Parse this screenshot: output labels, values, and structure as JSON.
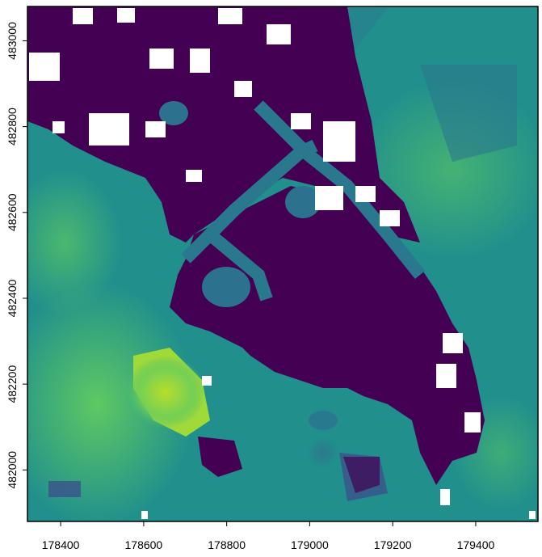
{
  "map": {
    "extent": {
      "xmin": 178320,
      "xmax": 179550,
      "ymin": 481880,
      "ymax": 483080
    },
    "x_ticks": [
      "178400",
      "178600",
      "178800",
      "179000",
      "179200",
      "179400"
    ],
    "y_ticks": [
      "482000",
      "482200",
      "482400",
      "482600",
      "482800",
      "483000"
    ],
    "x_tick_values": [
      178400,
      178600,
      178800,
      179000,
      179200,
      179400
    ],
    "y_tick_values": [
      482000,
      482200,
      482400,
      482600,
      482800,
      483000
    ],
    "palette": {
      "dark": "#440154",
      "purple_blue": "#3b528b",
      "teal": "#21908c",
      "green": "#35b779",
      "yellow_green": "#90d743",
      "nodata": "#ffffff"
    }
  }
}
